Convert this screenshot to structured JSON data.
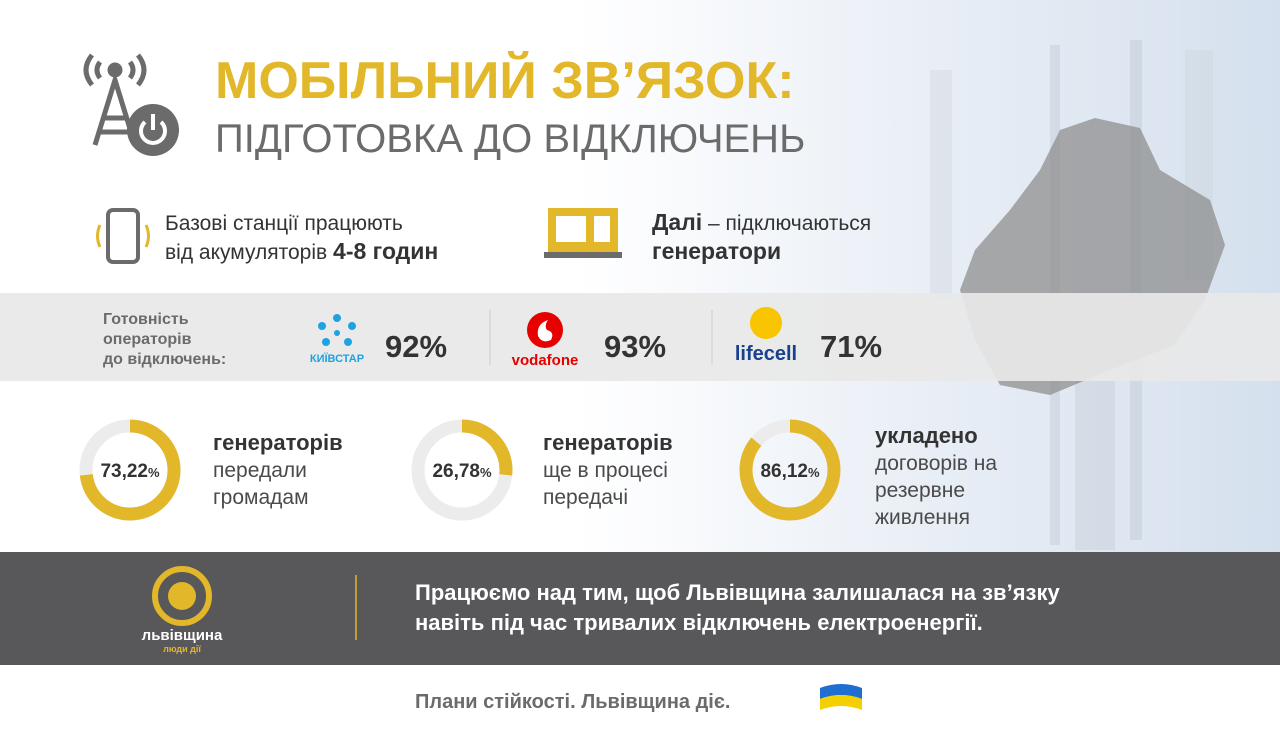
{
  "header": {
    "title": "МОБІЛЬНИЙ ЗВ’ЯЗОК:",
    "subtitle": "ПІДГОТОВКА ДО ВІДКЛЮЧЕНЬ"
  },
  "facts": [
    {
      "line1": "Базові станції працюють",
      "line2": "від акумуляторів",
      "highlight": "4-8 годин"
    },
    {
      "highlight": "Далі",
      "line1": "– підключаються",
      "line2": "генератори"
    }
  ],
  "readiness": {
    "label": [
      "Готовність",
      "операторів",
      "до відключень:"
    ],
    "operators": [
      {
        "logo": "КИЇВСТАР",
        "value": "92%"
      },
      {
        "logo": "vodafone",
        "value": "93%"
      },
      {
        "logo": "lifecell",
        "value": "71%"
      }
    ]
  },
  "stats": [
    {
      "value": 73.22,
      "label": "73,22",
      "unit": "%",
      "lines": [
        "генераторів",
        "передали",
        "громадам"
      ]
    },
    {
      "value": 26.78,
      "label": "26,78",
      "unit": "%",
      "lines": [
        "генераторів",
        "ще в процесі",
        "передачі"
      ]
    },
    {
      "value": 86.12,
      "label": "86,12",
      "unit": "%",
      "lines": [
        "укладено",
        "договорів на",
        "резервне",
        "живлення"
      ]
    }
  ],
  "footer": {
    "brand": "львівщина",
    "brand_sub": "люди дії",
    "message": [
      "Працюємо над тим, щоб Львівщина залишалася на зв’язку",
      "навіть під час тривалих відключень електроенергії."
    ]
  },
  "slogan": "Плани стійкості. Львівщина діє."
}
